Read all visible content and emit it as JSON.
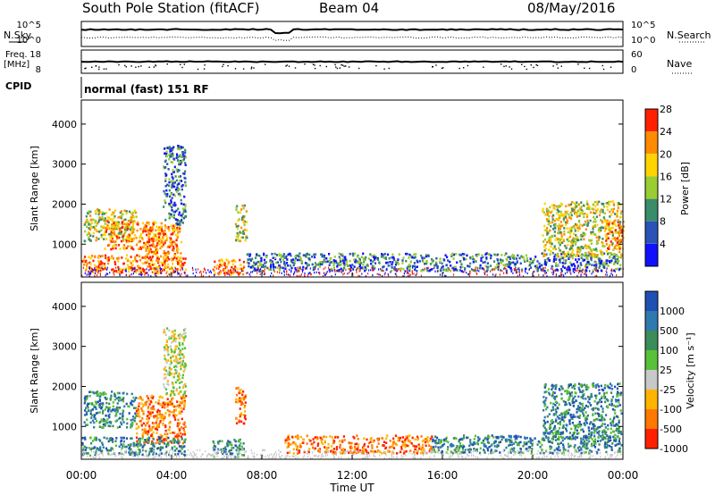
{
  "header": {
    "station": "South Pole Station (fitACF)",
    "beam": "Beam 04",
    "date": "08/May/2016"
  },
  "panels": {
    "nsky_label": "N.Sky",
    "nsearch_label": "N.Search",
    "freq_label_top": "Freq.",
    "freq_label_unit": "[MHz]",
    "nave_label": "Nave",
    "cpid_label": "CPID",
    "cpid_value": "normal (fast) 151 RF",
    "noise_ticks": [
      "10^5",
      "10^0"
    ],
    "freq_ticks": [
      "18",
      "8"
    ],
    "nave_ticks": [
      "60",
      "0"
    ]
  },
  "chart_data": [
    {
      "type": "heatmap",
      "name": "power",
      "xlabel": "Time UT",
      "ylabel": "Slant Range [km]",
      "xlim": [
        0,
        24
      ],
      "ylim": [
        180,
        4600
      ],
      "x_tick_labels": [
        "00:00",
        "04:00",
        "08:00",
        "12:00",
        "16:00",
        "20:00",
        "00:00"
      ],
      "y_ticks": [
        1000,
        2000,
        3000,
        4000
      ],
      "colorbar_label": "Power [dB]",
      "colorbar_ticks": [
        "4",
        "8",
        "12",
        "16",
        "20",
        "24",
        "28"
      ],
      "colorbar_colors": [
        "#1010ff",
        "#2a52b8",
        "#3a8c6a",
        "#9acd32",
        "#ffd400",
        "#ff8c00",
        "#ff2000"
      ],
      "regions": [
        {
          "t0": 0.1,
          "t1": 2.4,
          "r0": 1100,
          "r1": 1900,
          "level": "mid"
        },
        {
          "t0": 1.0,
          "t1": 3.6,
          "r0": 900,
          "r1": 1600,
          "level": "high"
        },
        {
          "t0": 2.8,
          "t1": 4.4,
          "r0": 600,
          "r1": 1500,
          "level": "high"
        },
        {
          "t0": 3.6,
          "t1": 4.6,
          "r0": 1500,
          "r1": 3500,
          "level": "low"
        },
        {
          "t0": 0.0,
          "t1": 4.6,
          "r0": 300,
          "r1": 750,
          "level": "high"
        },
        {
          "t0": 5.8,
          "t1": 7.2,
          "r0": 250,
          "r1": 650,
          "level": "high"
        },
        {
          "t0": 6.8,
          "t1": 7.3,
          "r0": 1100,
          "r1": 2000,
          "level": "mid"
        },
        {
          "t0": 7.3,
          "t1": 23.9,
          "r0": 350,
          "r1": 800,
          "level": "low"
        },
        {
          "t0": 20.4,
          "t1": 23.9,
          "r0": 700,
          "r1": 2100,
          "level": "mid"
        },
        {
          "t0": 23.2,
          "t1": 24.0,
          "r0": 900,
          "r1": 1600,
          "level": "high"
        }
      ]
    },
    {
      "type": "heatmap",
      "name": "velocity",
      "xlabel": "Time UT",
      "ylabel": "Slant Range [km]",
      "xlim": [
        0,
        24
      ],
      "ylim": [
        180,
        4600
      ],
      "x_tick_labels": [
        "00:00",
        "04:00",
        "08:00",
        "12:00",
        "16:00",
        "20:00",
        "00:00"
      ],
      "y_ticks": [
        1000,
        2000,
        3000,
        4000
      ],
      "colorbar_label": "Velocity [m s⁻¹]",
      "colorbar_ticks": [
        "1000",
        "500",
        "100",
        "25",
        "-25",
        "-100",
        "-500",
        "-1000"
      ],
      "colorbar_colors": [
        "#1e50b4",
        "#2e7ab0",
        "#3c8c5a",
        "#58c038",
        "#c8c8c8",
        "#ffb400",
        "#ff7800",
        "#ff2000"
      ],
      "regions": [
        {
          "t0": 0.1,
          "t1": 2.4,
          "r0": 1000,
          "r1": 1900,
          "level": "pos"
        },
        {
          "t0": 2.4,
          "t1": 4.6,
          "r0": 600,
          "r1": 1800,
          "level": "neg"
        },
        {
          "t0": 3.6,
          "t1": 4.6,
          "r0": 1800,
          "r1": 3500,
          "level": "zero"
        },
        {
          "t0": 0.0,
          "t1": 4.6,
          "r0": 300,
          "r1": 750,
          "level": "pos"
        },
        {
          "t0": 5.8,
          "t1": 7.2,
          "r0": 250,
          "r1": 700,
          "level": "pos"
        },
        {
          "t0": 6.8,
          "t1": 7.3,
          "r0": 1100,
          "r1": 2000,
          "level": "neg"
        },
        {
          "t0": 9.0,
          "t1": 15.5,
          "r0": 350,
          "r1": 800,
          "level": "neg"
        },
        {
          "t0": 15.5,
          "t1": 23.9,
          "r0": 350,
          "r1": 800,
          "level": "pos"
        },
        {
          "t0": 20.4,
          "t1": 23.9,
          "r0": 700,
          "r1": 2100,
          "level": "pos"
        }
      ]
    }
  ]
}
